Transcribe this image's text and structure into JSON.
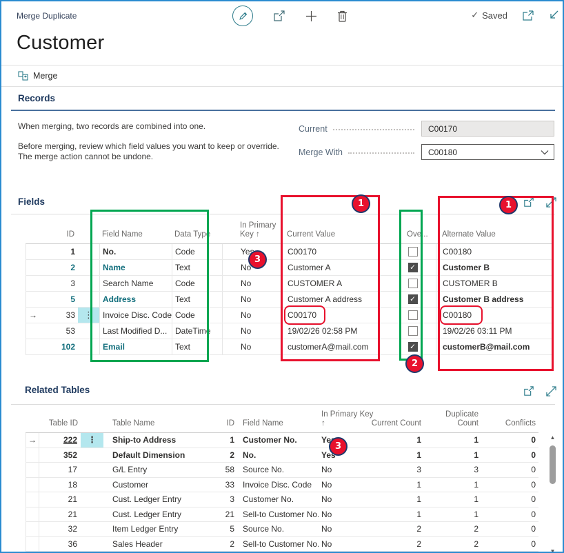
{
  "colors": {
    "accent_teal": "#136f7d",
    "annotation_red": "#e8112d",
    "annotation_green": "#00a651",
    "window_border": "#2a8bd0",
    "heading_navy": "#1f3a5f"
  },
  "topbar": {
    "breadcrumb": "Merge Duplicate",
    "saved_check": "✓",
    "saved_label": "Saved"
  },
  "page": {
    "title": "Customer",
    "merge_action": "Merge"
  },
  "records": {
    "heading": "Records",
    "description1": "When merging, two records are combined into one.",
    "description2_line1": "Before merging, review which field values you want to keep or override.",
    "description2_line2": "The merge action cannot be undone.",
    "current_label": "Current",
    "current_value": "C00170",
    "merge_with_label": "Merge With",
    "merge_with_value": "C00180"
  },
  "fields": {
    "heading": "Fields",
    "columns": {
      "id": "ID",
      "name": "Field Name",
      "type": "Data Type",
      "pk_line1": "In Primary",
      "pk_line2": "Key ↑",
      "current": "Current Value",
      "override": "Ove...",
      "alternate": "Alternate Value"
    },
    "selected_arrow": "→",
    "ellipsis": "⋮",
    "check_glyph": "✓",
    "rows": [
      {
        "id": "1",
        "id_bold": true,
        "name": "No.",
        "name_bold": true,
        "type": "Code",
        "pk": "Yes",
        "current": "C00170",
        "override": false,
        "alternate": "C00180",
        "alt_bold": false,
        "teal": false,
        "selected": false
      },
      {
        "id": "2",
        "teal": true,
        "name": "Name",
        "type": "Text",
        "pk": "No",
        "current": "Customer A",
        "override": true,
        "alternate": "Customer B",
        "alt_bold": true,
        "selected": false
      },
      {
        "id": "3",
        "teal": false,
        "name": "Search Name",
        "type": "Code",
        "pk": "No",
        "current": "CUSTOMER A",
        "override": false,
        "alternate": "CUSTOMER B",
        "alt_bold": false,
        "selected": false
      },
      {
        "id": "5",
        "teal": true,
        "name": "Address",
        "type": "Text",
        "pk": "No",
        "current": "Customer A address",
        "override": true,
        "alternate": "Customer B address",
        "alt_bold": true,
        "selected": false
      },
      {
        "id": "33",
        "teal": false,
        "name": "Invoice Disc. Code",
        "type": "Code",
        "pk": "No",
        "current": "C00170",
        "override": false,
        "alternate": "C00180",
        "alt_bold": false,
        "selected": true
      },
      {
        "id": "53",
        "teal": false,
        "name": "Last Modified D...",
        "type": "DateTime",
        "pk": "No",
        "current": "19/02/26 02:58 PM",
        "override": false,
        "alternate": "19/02/26 03:11 PM",
        "alt_bold": false,
        "selected": false
      },
      {
        "id": "102",
        "teal": true,
        "name": "Email",
        "type": "Text",
        "pk": "No",
        "current": "customerA@mail.com",
        "override": true,
        "alternate": "customerB@mail.com",
        "alt_bold": true,
        "selected": false
      }
    ]
  },
  "related": {
    "heading": "Related Tables",
    "columns": {
      "table_id": "Table ID",
      "table_name": "Table Name",
      "id": "ID",
      "field_name": "Field Name",
      "pk_line1": "In Primary Key",
      "pk_line2": "↑",
      "current_count": "Current Count",
      "dup_line1": "Duplicate",
      "dup_line2": "Count",
      "conflicts": "Conflicts"
    },
    "rows": [
      {
        "table_id": "222",
        "selected": true,
        "bold": true,
        "underline": true,
        "table_name": "Ship-to Address",
        "id": "1",
        "field_name": "Customer No.",
        "pk": "Yes",
        "current_count": "1",
        "duplicate_count": "1",
        "conflicts": "0"
      },
      {
        "table_id": "352",
        "bold": true,
        "table_name": "Default Dimension",
        "id": "2",
        "field_name": "No.",
        "pk": "Yes",
        "current_count": "1",
        "duplicate_count": "1",
        "conflicts": "0"
      },
      {
        "table_id": "17",
        "table_name": "G/L Entry",
        "id": "58",
        "field_name": "Source No.",
        "pk": "No",
        "current_count": "3",
        "duplicate_count": "3",
        "conflicts": "0"
      },
      {
        "table_id": "18",
        "table_name": "Customer",
        "id": "33",
        "field_name": "Invoice Disc. Code",
        "pk": "No",
        "current_count": "1",
        "duplicate_count": "1",
        "conflicts": "0"
      },
      {
        "table_id": "21",
        "table_name": "Cust. Ledger Entry",
        "id": "3",
        "field_name": "Customer No.",
        "pk": "No",
        "current_count": "1",
        "duplicate_count": "1",
        "conflicts": "0"
      },
      {
        "table_id": "21",
        "table_name": "Cust. Ledger Entry",
        "id": "21",
        "field_name": "Sell-to Customer No.",
        "pk": "No",
        "current_count": "1",
        "duplicate_count": "1",
        "conflicts": "0"
      },
      {
        "table_id": "32",
        "table_name": "Item Ledger Entry",
        "id": "5",
        "field_name": "Source No.",
        "pk": "No",
        "current_count": "2",
        "duplicate_count": "2",
        "conflicts": "0"
      },
      {
        "table_id": "36",
        "table_name": "Sales Header",
        "id": "2",
        "field_name": "Sell-to Customer No.",
        "pk": "No",
        "current_count": "2",
        "duplicate_count": "2",
        "conflicts": "0"
      }
    ]
  },
  "annotations": {
    "callout_1": "1",
    "callout_2": "2",
    "callout_3": "3"
  }
}
